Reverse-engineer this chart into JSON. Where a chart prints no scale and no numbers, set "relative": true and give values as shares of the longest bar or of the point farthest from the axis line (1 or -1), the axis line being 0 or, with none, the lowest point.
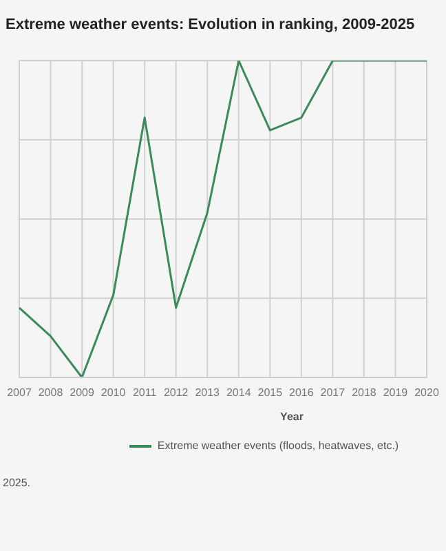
{
  "chart_data": {
    "type": "line",
    "title": "Extreme weather events: Evolution in ranking, 2009-2025",
    "xlabel": "Year",
    "annotations": [
      "2025."
    ],
    "relative": true,
    "categories": [
      "2007",
      "2008",
      "2009",
      "2010",
      "2011",
      "2012",
      "2013",
      "2014",
      "2015",
      "2016",
      "2017",
      "2018",
      "2019",
      "2020"
    ],
    "series": [
      {
        "name": "Extreme weather events (floods, heatwaves, etc.)",
        "color": "#3a8a5a",
        "values": [
          0.22,
          0.13,
          0,
          0.26,
          0.82,
          0.22,
          0.52,
          1,
          0.78,
          0.82,
          1,
          1,
          1,
          1
        ]
      }
    ],
    "grid": true,
    "legend": "bottom",
    "marker": "none",
    "line_style": "solid"
  }
}
